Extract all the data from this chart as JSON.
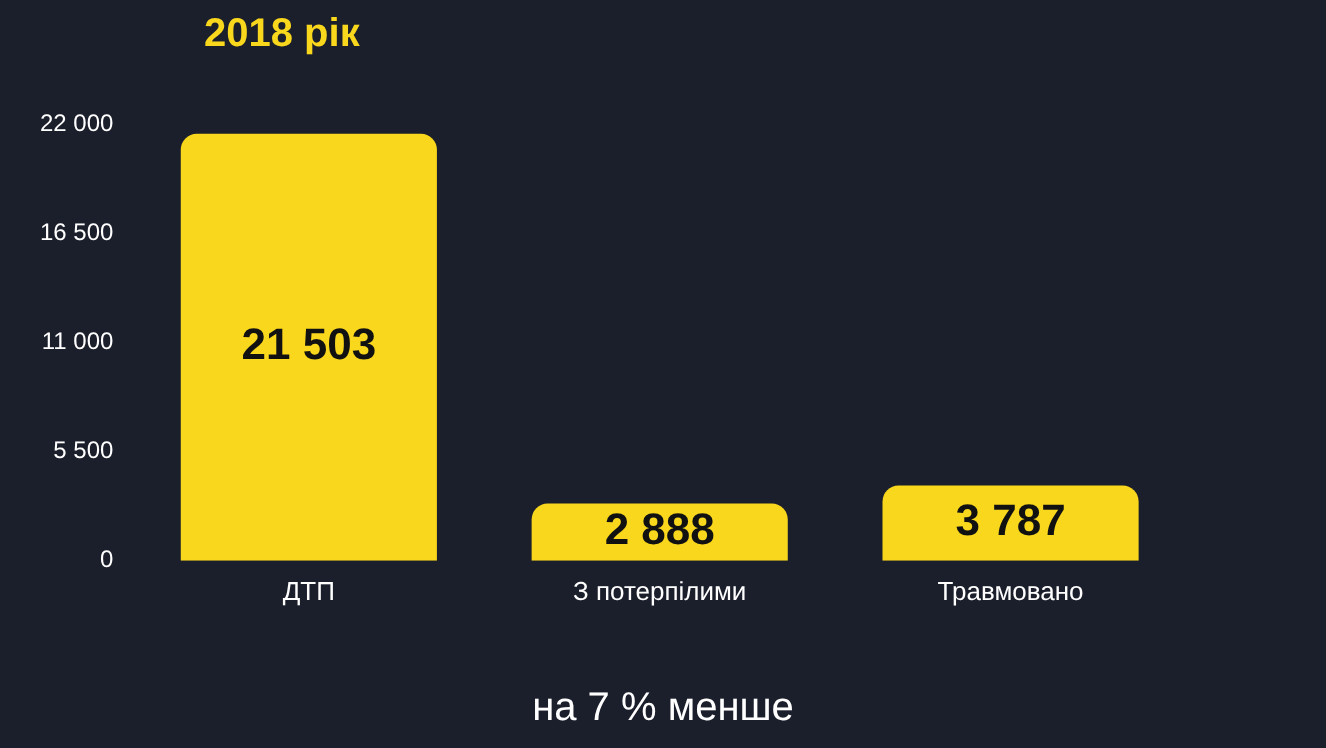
{
  "chart_data": {
    "type": "bar",
    "title": "2018 рік",
    "categories": [
      "ДТП",
      "З потерпілими",
      "Травмовано"
    ],
    "values": [
      21503,
      2888,
      3787
    ],
    "value_labels": [
      "21 503",
      "2 888",
      "3 787"
    ],
    "color": "#f9d71c",
    "ylim": [
      0,
      22000
    ],
    "yticks": [
      {
        "value": 0,
        "label": "0"
      },
      {
        "value": 5500,
        "label": "5 500"
      },
      {
        "value": 11000,
        "label": "11 000"
      },
      {
        "value": 16500,
        "label": "16 500"
      },
      {
        "value": 22000,
        "label": "22 000"
      }
    ],
    "grid": false,
    "legend": false,
    "annotations": [
      "на 7 % менше"
    ]
  }
}
